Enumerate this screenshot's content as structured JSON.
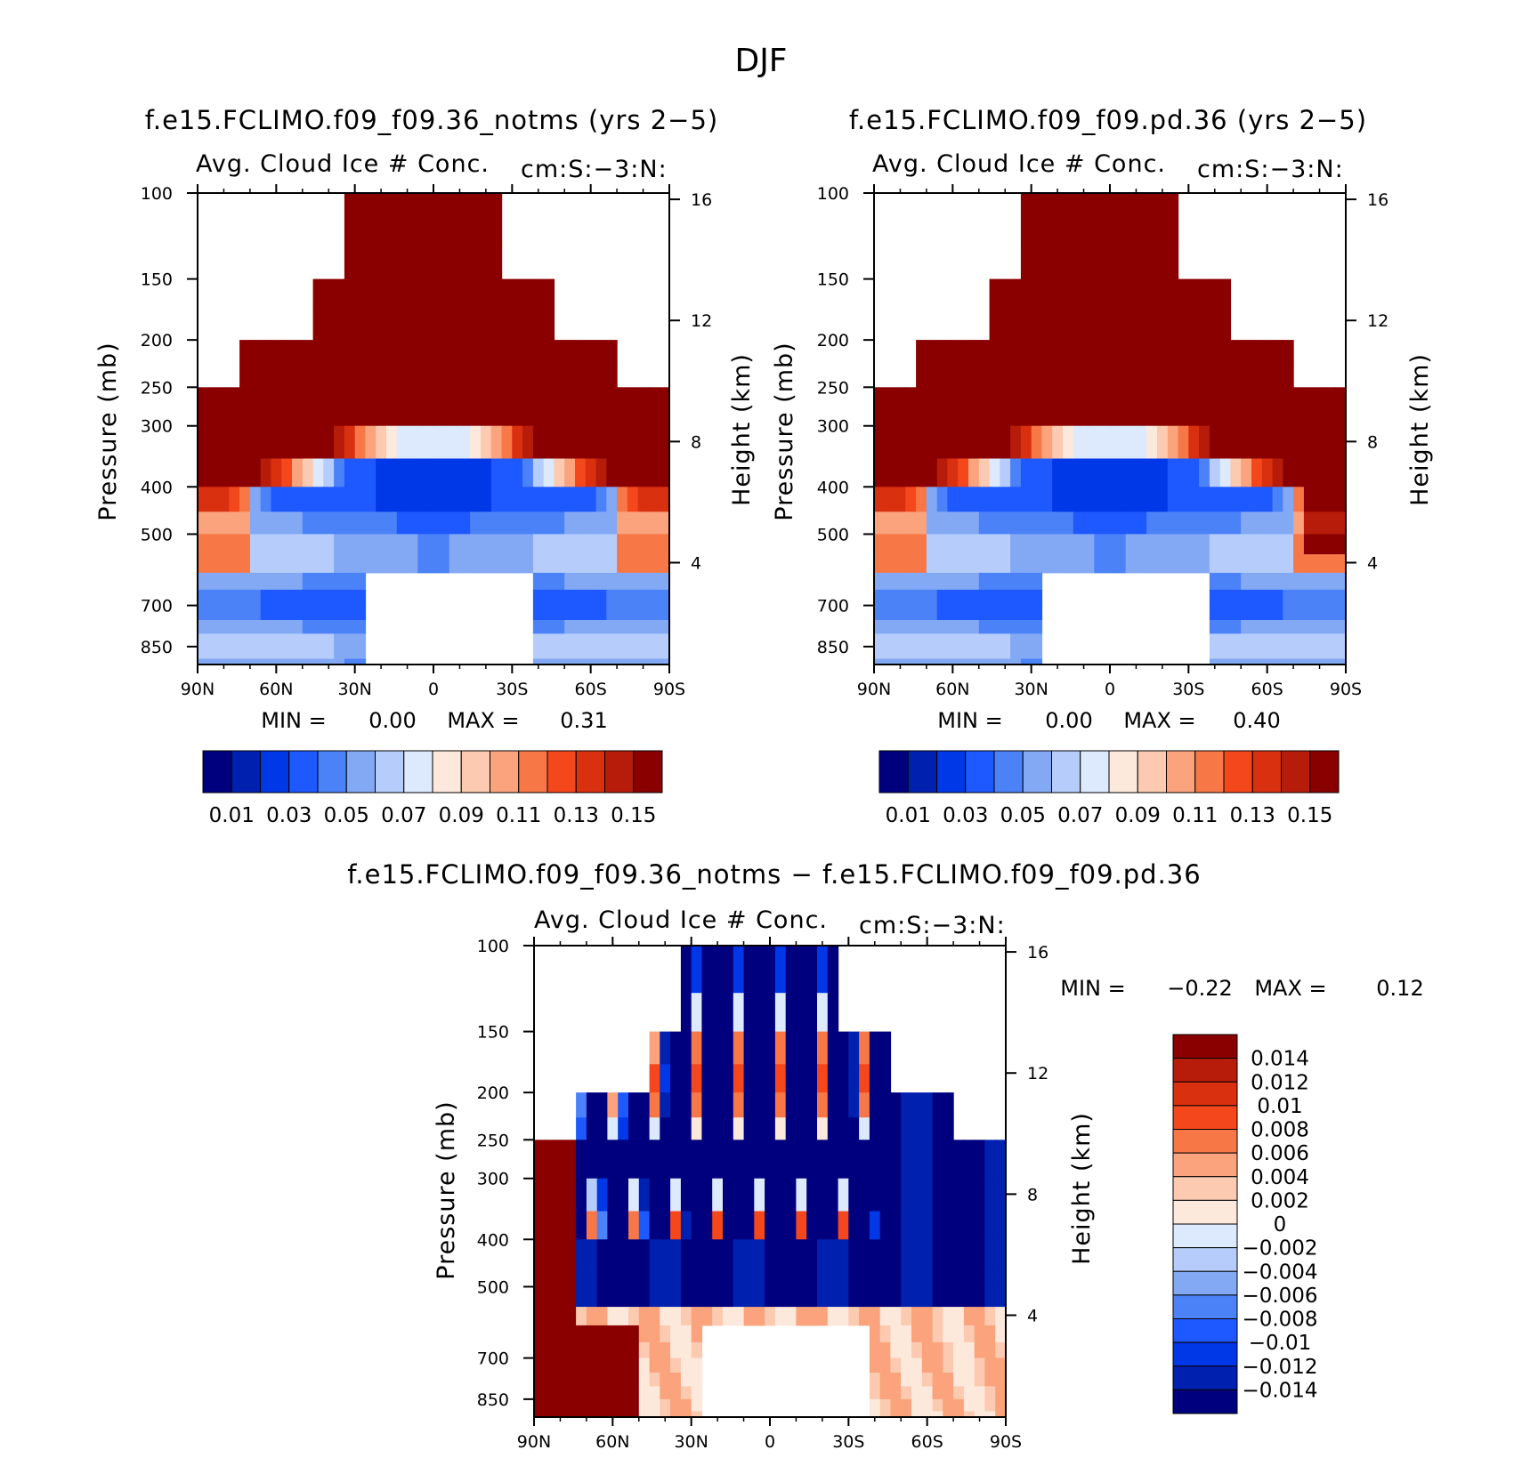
{
  "figure": {
    "title": "DJF"
  },
  "chart_data": [
    {
      "type": "heatmap",
      "title": "f.e15.FCLIMO.f09_f09.36_notms (yrs 2−5)",
      "subtitle": "Avg. Cloud Ice # Conc.",
      "units": "cm:S:−3:N:",
      "xlabel": "",
      "ylabel": "Pressure (mb)",
      "ylabel_right": "Height (km)",
      "x_ticks": [
        "90N",
        "60N",
        "30N",
        "0",
        "30S",
        "60S",
        "90S"
      ],
      "y_ticks": [
        "100",
        "150",
        "200",
        "250",
        "300",
        "400",
        "500",
        "700",
        "850"
      ],
      "y_ticks_right": [
        "16",
        "12",
        "8",
        "4"
      ],
      "min_label": "MIN =",
      "min_value": "0.00",
      "max_label": "MAX =",
      "max_value": "0.31",
      "colorbar_labels": [
        "0.01",
        "0.03",
        "0.05",
        "0.07",
        "0.09",
        "0.11",
        "0.13",
        "0.15"
      ],
      "colorbar_colors": [
        "#00007f",
        "#0021b0",
        "#0037e6",
        "#1e59ff",
        "#4c82f7",
        "#83a9f5",
        "#b6cdfc",
        "#dde9fd",
        "#fde9dc",
        "#fccab0",
        "#faa37c",
        "#f77747",
        "#f5471c",
        "#d93010",
        "#b71c0a",
        "#8a0000"
      ],
      "max_over": 0.31
    },
    {
      "type": "heatmap",
      "title": "f.e15.FCLIMO.f09_f09.pd.36 (yrs 2−5)",
      "subtitle": "Avg. Cloud Ice # Conc.",
      "units": "cm:S:−3:N:",
      "xlabel": "",
      "ylabel": "Pressure (mb)",
      "ylabel_right": "Height (km)",
      "x_ticks": [
        "90N",
        "60N",
        "30N",
        "0",
        "30S",
        "60S",
        "90S"
      ],
      "y_ticks": [
        "100",
        "150",
        "200",
        "250",
        "300",
        "400",
        "500",
        "700",
        "850"
      ],
      "y_ticks_right": [
        "16",
        "12",
        "8",
        "4"
      ],
      "min_label": "MIN =",
      "min_value": "0.00",
      "max_label": "MAX =",
      "max_value": "0.40",
      "colorbar_labels": [
        "0.01",
        "0.03",
        "0.05",
        "0.07",
        "0.09",
        "0.11",
        "0.13",
        "0.15"
      ],
      "colorbar_colors": [
        "#00007f",
        "#0021b0",
        "#0037e6",
        "#1e59ff",
        "#4c82f7",
        "#83a9f5",
        "#b6cdfc",
        "#dde9fd",
        "#fde9dc",
        "#fccab0",
        "#faa37c",
        "#f77747",
        "#f5471c",
        "#d93010",
        "#b71c0a",
        "#8a0000"
      ],
      "max_over": 0.4
    },
    {
      "type": "heatmap",
      "title": "f.e15.FCLIMO.f09_f09.36_notms − f.e15.FCLIMO.f09_f09.pd.36",
      "subtitle": "Avg. Cloud Ice # Conc.",
      "units": "cm:S:−3:N:",
      "xlabel": "",
      "ylabel": "Pressure (mb)",
      "ylabel_right": "Height (km)",
      "x_ticks": [
        "90N",
        "60N",
        "30N",
        "0",
        "30S",
        "60S",
        "90S"
      ],
      "y_ticks": [
        "100",
        "150",
        "200",
        "250",
        "300",
        "400",
        "500",
        "700",
        "850"
      ],
      "y_ticks_right": [
        "16",
        "12",
        "8",
        "4"
      ],
      "min_label": "MIN =",
      "min_value": "−0.22",
      "max_label": "MAX =",
      "max_value": "0.12",
      "colorbar_labels": [
        "0.014",
        "0.012",
        "0.01",
        "0.008",
        "0.006",
        "0.004",
        "0.002",
        "0",
        "−0.002",
        "−0.004",
        "−0.006",
        "−0.008",
        "−0.01",
        "−0.012",
        "−0.014"
      ],
      "colorbar_colors": [
        "#8a0000",
        "#b71c0a",
        "#d93010",
        "#f5471c",
        "#f77747",
        "#faa37c",
        "#fccab0",
        "#fde9dc",
        "#dde9fd",
        "#b6cdfc",
        "#83a9f5",
        "#4c82f7",
        "#1e59ff",
        "#0037e6",
        "#0021b0",
        "#00007f"
      ]
    }
  ]
}
